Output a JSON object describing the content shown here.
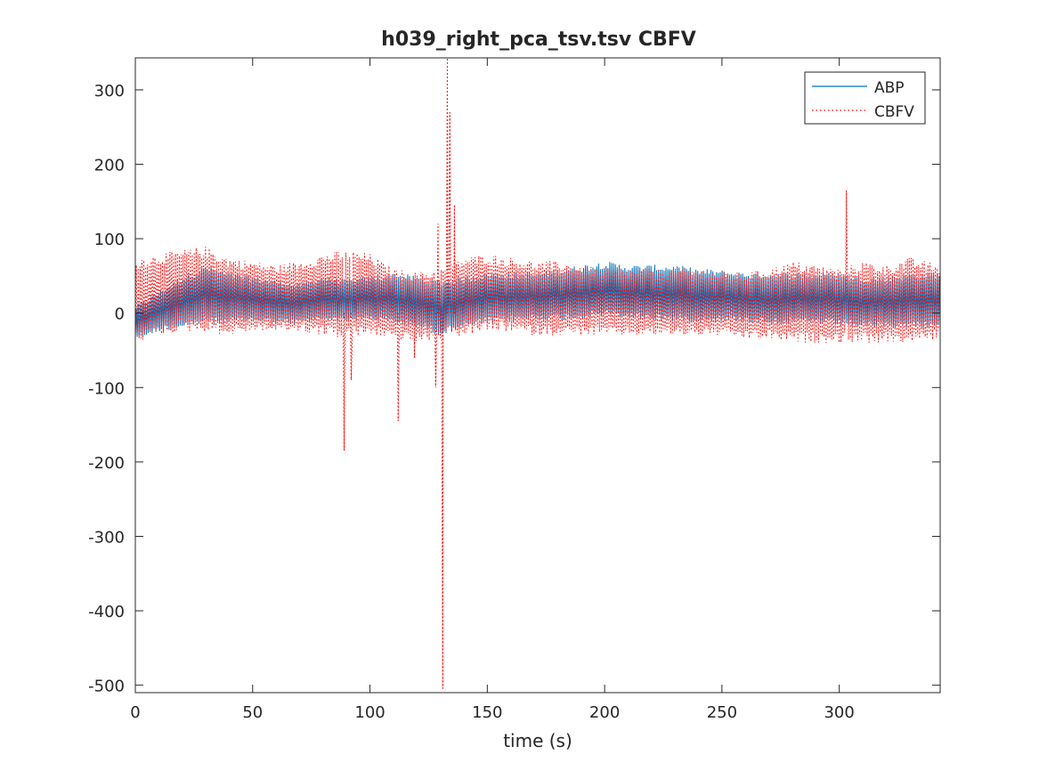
{
  "chart_data": {
    "type": "line",
    "title": "h039_right_pca_tsv.tsv CBFV",
    "xlabel": "time (s)",
    "ylabel": "",
    "xlim": [
      0,
      343
    ],
    "ylim": [
      -510,
      343
    ],
    "xticks": [
      0,
      50,
      100,
      150,
      200,
      250,
      300
    ],
    "yticks": [
      -500,
      -400,
      -300,
      -200,
      -100,
      0,
      100,
      200,
      300
    ],
    "xtick_labels": [
      "0",
      "50",
      "100",
      "150",
      "200",
      "250",
      "300"
    ],
    "ytick_labels": [
      "-500",
      "-400",
      "-300",
      "-200",
      "-100",
      "0",
      "100",
      "200",
      "300"
    ],
    "grid": false,
    "legend_position": "top-right",
    "series": [
      {
        "name": "ABP",
        "color": "#0072BD",
        "style": "solid",
        "envelope": {
          "t": [
            0,
            10,
            20,
            30,
            40,
            50,
            60,
            70,
            80,
            90,
            100,
            110,
            120,
            130,
            140,
            150,
            160,
            170,
            180,
            190,
            200,
            210,
            220,
            230,
            240,
            250,
            260,
            270,
            280,
            290,
            300,
            310,
            320,
            330,
            343
          ],
          "upper": [
            10,
            30,
            50,
            65,
            55,
            50,
            45,
            40,
            50,
            45,
            50,
            55,
            50,
            45,
            50,
            55,
            55,
            55,
            60,
            65,
            70,
            65,
            65,
            65,
            60,
            58,
            55,
            55,
            55,
            55,
            55,
            50,
            50,
            55,
            55
          ],
          "lower": [
            -35,
            -25,
            -20,
            -15,
            -15,
            -12,
            -15,
            -15,
            -10,
            -12,
            -10,
            -15,
            -20,
            -30,
            -20,
            -15,
            -12,
            -10,
            -10,
            -8,
            -5,
            -8,
            -10,
            -12,
            -12,
            -12,
            -12,
            -15,
            -15,
            -15,
            -18,
            -20,
            -20,
            -20,
            -20
          ]
        }
      },
      {
        "name": "CBFV",
        "color": "#FF0000",
        "style": "dotted",
        "envelope": {
          "t": [
            0,
            10,
            20,
            30,
            40,
            50,
            60,
            70,
            80,
            90,
            100,
            110,
            120,
            130,
            140,
            150,
            160,
            170,
            180,
            190,
            200,
            210,
            220,
            230,
            240,
            250,
            260,
            270,
            280,
            290,
            300,
            310,
            320,
            330,
            343
          ],
          "upper": [
            75,
            80,
            85,
            90,
            75,
            70,
            65,
            70,
            80,
            85,
            80,
            60,
            55,
            60,
            75,
            80,
            75,
            70,
            70,
            65,
            60,
            60,
            60,
            60,
            60,
            55,
            55,
            60,
            70,
            65,
            60,
            70,
            65,
            75,
            65
          ],
          "lower": [
            -40,
            -30,
            -25,
            -25,
            -30,
            -25,
            -25,
            -25,
            -30,
            -35,
            -30,
            -35,
            -40,
            -35,
            -30,
            -25,
            -25,
            -30,
            -30,
            -30,
            -30,
            -30,
            -30,
            -30,
            -30,
            -30,
            -35,
            -35,
            -40,
            -40,
            -40,
            -40,
            -40,
            -40,
            -35
          ]
        },
        "spikes": [
          {
            "t": 89,
            "y": -185
          },
          {
            "t": 92,
            "y": -90
          },
          {
            "t": 112,
            "y": -145
          },
          {
            "t": 119,
            "y": -60
          },
          {
            "t": 128,
            "y": -100
          },
          {
            "t": 131,
            "y": -505
          },
          {
            "t": 133,
            "y": 343
          },
          {
            "t": 134,
            "y": 270
          },
          {
            "t": 136,
            "y": 145
          },
          {
            "t": 129,
            "y": 120
          },
          {
            "t": 303,
            "y": 165
          }
        ]
      }
    ]
  }
}
